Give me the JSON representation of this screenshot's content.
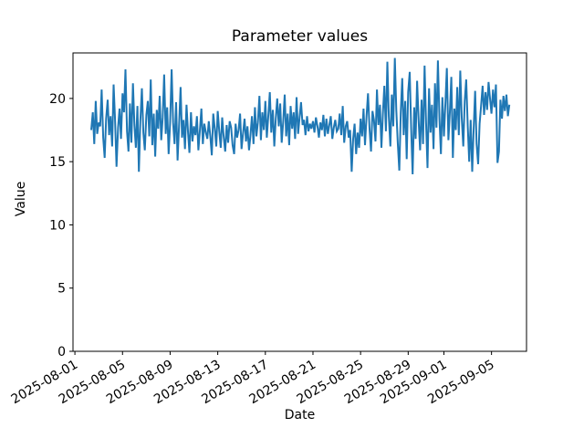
{
  "chart_data": {
    "type": "line",
    "title": "Parameter values",
    "xlabel": "Date",
    "ylabel": "Value",
    "line_color": "#1f77b4",
    "axis_color": "#000000",
    "background_color": "#ffffff",
    "legend": "none",
    "grid": "off",
    "ylim": [
      0,
      23.6
    ],
    "y_ticks": [
      0,
      5,
      10,
      15,
      20
    ],
    "x_epoch": "2025-08-01",
    "xlim_days": [
      -0.16,
      37.94
    ],
    "x_tick_days": [
      0,
      4,
      8,
      12,
      16,
      20,
      24,
      28,
      31,
      35
    ],
    "x_tick_labels": [
      "2025-08-01",
      "2025-08-05",
      "2025-08-09",
      "2025-08-13",
      "2025-08-17",
      "2025-08-21",
      "2025-08-25",
      "2025-08-29",
      "2025-09-01",
      "2025-09-05"
    ],
    "x_tick_rotation_deg": -30,
    "series_name": "Parameter",
    "x_start_day": 1.375,
    "x_step_days": 0.125,
    "values": [
      17.5,
      18.9,
      16.4,
      19.8,
      17.2,
      18.1,
      17.8,
      20.7,
      16.9,
      15.3,
      18.4,
      19.9,
      17.1,
      18.6,
      16.2,
      21.1,
      18.3,
      14.6,
      17.7,
      19.2,
      16.8,
      20.4,
      18.9,
      22.3,
      17.4,
      15.8,
      19.6,
      16.5,
      21.2,
      17.9,
      16.1,
      19.4,
      14.2,
      18.2,
      20.8,
      17.3,
      15.9,
      18.7,
      19.8,
      17.0,
      21.5,
      16.3,
      18.8,
      15.4,
      19.1,
      17.6,
      20.2,
      16.7,
      18.5,
      21.9,
      17.2,
      19.3,
      15.6,
      18.0,
      22.3,
      18.1,
      16.4,
      19.7,
      15.1,
      17.8,
      20.9,
      16.9,
      18.3,
      16.0,
      19.5,
      17.4,
      15.7,
      18.9,
      16.6,
      17.8,
      17.1,
      18.6,
      15.9,
      17.5,
      19.2,
      16.4,
      18.0,
      17.3,
      16.8,
      18.2,
      17.0,
      15.5,
      18.8,
      17.6,
      16.2,
      19.0,
      17.4,
      16.1,
      18.5,
      17.0,
      15.8,
      17.9,
      16.5,
      18.2,
      17.7,
      16.3,
      15.6,
      18.0,
      16.9,
      17.5,
      18.8,
      16.0,
      17.2,
      18.4,
      16.6,
      17.8,
      15.9,
      17.1,
      18.6,
      16.4,
      19.3,
      17.0,
      18.1,
      20.2,
      16.7,
      18.9,
      17.5,
      19.8,
      16.9,
      18.7,
      20.5,
      17.3,
      19.1,
      16.2,
      18.4,
      20.0,
      17.8,
      19.6,
      16.5,
      18.2,
      20.3,
      17.0,
      18.8,
      16.3,
      19.4,
      17.6,
      18.9,
      16.8,
      20.1,
      17.2,
      18.5,
      19.7,
      17.9,
      18.3,
      17.1,
      18.6,
      17.4,
      18.0,
      17.6,
      18.2,
      17.3,
      18.5,
      17.8,
      16.9,
      18.1,
      17.5,
      18.7,
      17.0,
      18.4,
      17.2,
      17.9,
      18.6,
      16.8,
      17.7,
      18.3,
      17.4,
      17.6,
      18.8,
      17.1,
      19.4,
      16.5,
      17.8,
      18.2,
      16.9,
      17.5,
      14.2,
      16.8,
      18.0,
      15.6,
      17.3,
      16.1,
      18.4,
      17.0,
      19.2,
      16.3,
      18.6,
      20.4,
      17.7,
      15.8,
      19.0,
      18.3,
      16.6,
      20.7,
      17.9,
      19.5,
      16.1,
      18.8,
      21.0,
      17.4,
      22.9,
      18.6,
      16.2,
      20.3,
      17.8,
      23.2,
      19.1,
      16.5,
      14.3,
      18.9,
      21.6,
      17.1,
      19.8,
      15.2,
      20.5,
      22.1,
      17.6,
      14.0,
      19.3,
      16.8,
      21.4,
      18.2,
      15.9,
      19.9,
      16.4,
      22.6,
      18.1,
      14.5,
      20.8,
      17.3,
      19.5,
      16.0,
      21.2,
      17.7,
      23.0,
      18.4,
      15.6,
      20.1,
      17.0,
      19.6,
      22.4,
      16.7,
      18.9,
      21.7,
      15.3,
      19.2,
      17.5,
      20.9,
      17.1,
      22.2,
      18.5,
      16.2,
      19.8,
      21.5,
      17.8,
      15.0,
      18.3,
      14.2,
      17.6,
      20.6,
      16.4,
      14.8,
      18.0,
      19.4,
      21.0,
      18.7,
      20.5,
      19.1,
      21.3,
      20.0,
      18.8,
      20.7,
      19.3,
      21.1,
      14.9,
      15.8,
      19.9,
      18.4,
      20.2,
      19.0,
      20.3,
      18.6,
      19.5
    ]
  }
}
